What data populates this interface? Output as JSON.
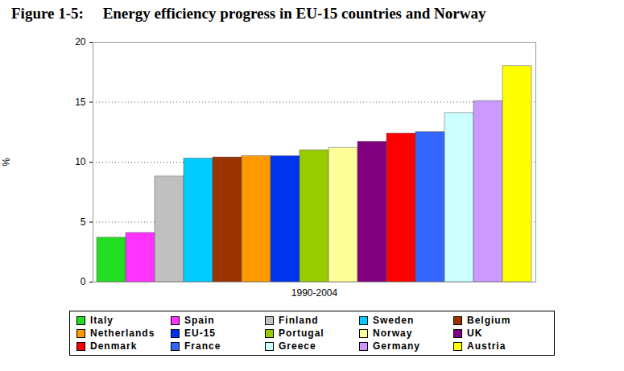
{
  "chart_data": {
    "type": "bar",
    "title": "Figure 1-5:     Energy efficiency progress in EU-15 countries and Norway",
    "y_label": "%",
    "categories": [
      "1990-2004"
    ],
    "series": [
      {
        "name": "Italy",
        "color": "#22dd22",
        "values": [
          3.7
        ]
      },
      {
        "name": "Spain",
        "color": "#ff33ff",
        "values": [
          4.1
        ]
      },
      {
        "name": "Finland",
        "color": "#c0c0c0",
        "values": [
          8.8
        ]
      },
      {
        "name": "Sweden",
        "color": "#00ccff",
        "values": [
          10.3
        ]
      },
      {
        "name": "Belgium",
        "color": "#993300",
        "values": [
          10.4
        ]
      },
      {
        "name": "Netherlands",
        "color": "#ff9900",
        "values": [
          10.5
        ]
      },
      {
        "name": "EU-15",
        "color": "#0033ee",
        "values": [
          10.5
        ]
      },
      {
        "name": "Portugal",
        "color": "#99cc00",
        "values": [
          11.0
        ]
      },
      {
        "name": "Norway",
        "color": "#ffff99",
        "values": [
          11.2
        ]
      },
      {
        "name": "UK",
        "color": "#800080",
        "values": [
          11.7
        ]
      },
      {
        "name": "Denmark",
        "color": "#ff0000",
        "values": [
          12.4
        ]
      },
      {
        "name": "France",
        "color": "#3366ff",
        "values": [
          12.5
        ]
      },
      {
        "name": "Greece",
        "color": "#ccffff",
        "values": [
          14.1
        ]
      },
      {
        "name": "Germany",
        "color": "#cc99ff",
        "values": [
          15.1
        ]
      },
      {
        "name": "Austria",
        "color": "#ffff00",
        "values": [
          18.0
        ]
      }
    ],
    "ylim": [
      0,
      20
    ],
    "yticks": [
      0,
      5,
      10,
      15,
      20
    ],
    "grid": true,
    "legend": "bottom"
  }
}
